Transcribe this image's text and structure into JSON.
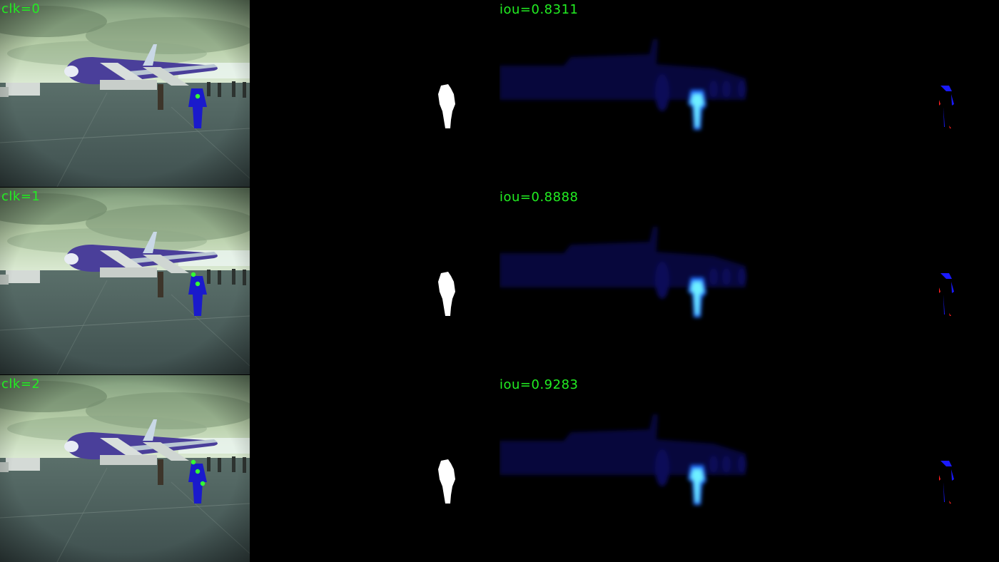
{
  "rows": [
    {
      "clk_label": "clk=0",
      "iou_label": "iou=0.8311",
      "click_count": 1
    },
    {
      "clk_label": "clk=1",
      "iou_label": "iou=0.8888",
      "click_count": 2
    },
    {
      "clk_label": "clk=2",
      "iou_label": "iou=0.9283",
      "click_count": 3
    }
  ],
  "colors": {
    "label_green": "#22ee22",
    "click_point": "#33ff33",
    "mask_blue": "#1a1acc",
    "gt_white": "#ffffff",
    "error_red": "#ff2020"
  },
  "icons": [
    "photo-frame",
    "mask-silhouette",
    "probability-map",
    "error-map"
  ]
}
